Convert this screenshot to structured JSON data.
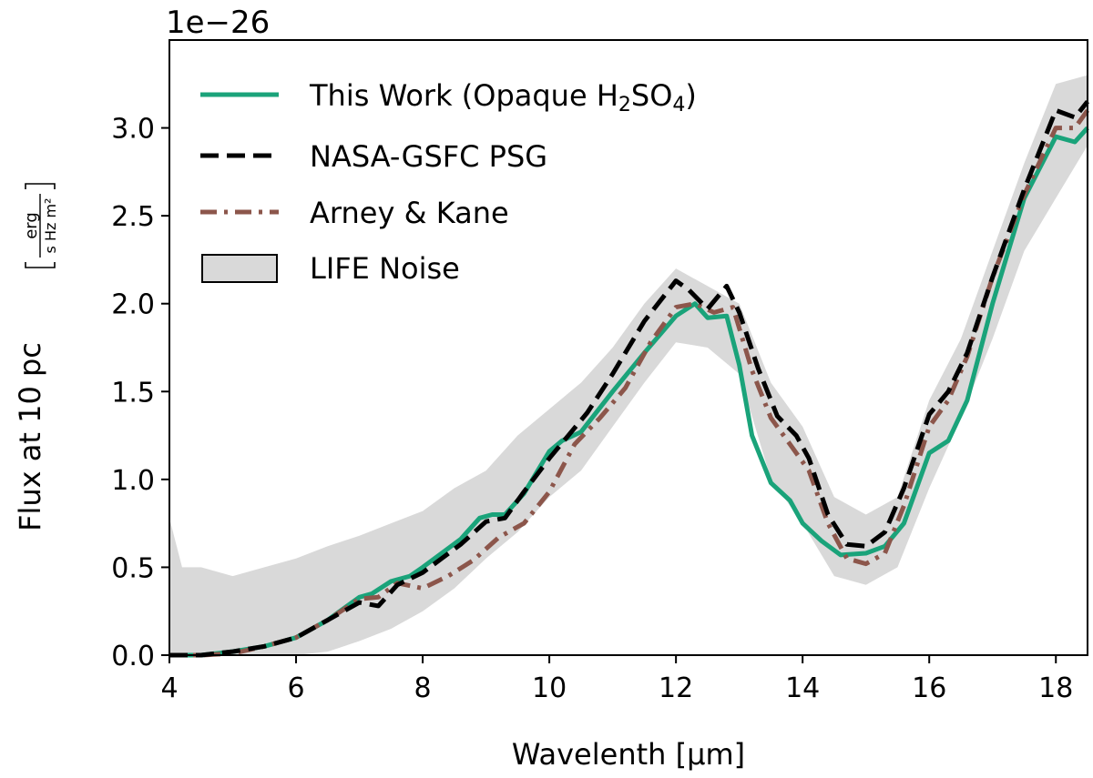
{
  "chart_data": {
    "type": "line",
    "xlabel": "Wavelenth [μm]",
    "ylabel": "Flux at 10 pc",
    "ylabel_unit_num": "erg",
    "ylabel_unit_den": "s Hz m²",
    "offset_text": "1e−26",
    "xlim": [
      4,
      18.5
    ],
    "ylim": [
      0,
      3.5
    ],
    "xticks": [
      4,
      6,
      8,
      10,
      12,
      14,
      16,
      18
    ],
    "yticks": [
      0.0,
      0.5,
      1.0,
      1.5,
      2.0,
      2.5,
      3.0
    ],
    "xtick_labels": [
      "4",
      "6",
      "8",
      "10",
      "12",
      "14",
      "16",
      "18"
    ],
    "ytick_labels": [
      "0.0",
      "0.5",
      "1.0",
      "1.5",
      "2.0",
      "2.5",
      "3.0"
    ],
    "grid": false,
    "legend_position": "top-left",
    "legend": {
      "this_work": "This Work (Opaque H",
      "this_work_sub1": "2",
      "this_work_mid": "SO",
      "this_work_sub2": "4",
      "this_work_end": ")",
      "psg": "NASA-GSFC PSG",
      "arney": "Arney & Kane",
      "noise": "LIFE Noise"
    },
    "colors": {
      "this_work": "#1aa37a",
      "psg": "#000000",
      "arney": "#8c564b",
      "noise_fill": "#d9d9d9"
    },
    "series": [
      {
        "name": "This Work (Opaque H2SO4)",
        "style": "solid",
        "x": [
          4.0,
          4.5,
          5.0,
          5.5,
          6.0,
          6.5,
          7.0,
          7.2,
          7.5,
          7.8,
          8.0,
          8.3,
          8.6,
          8.9,
          9.1,
          9.3,
          9.6,
          10.0,
          10.2,
          10.5,
          11.0,
          11.5,
          12.0,
          12.3,
          12.5,
          12.8,
          13.0,
          13.2,
          13.5,
          13.8,
          14.0,
          14.3,
          14.6,
          15.0,
          15.3,
          15.6,
          15.8,
          16.0,
          16.3,
          16.6,
          17.0,
          17.5,
          18.0,
          18.3,
          18.5
        ],
        "y": [
          0.0,
          0.0,
          0.02,
          0.05,
          0.1,
          0.2,
          0.33,
          0.35,
          0.42,
          0.45,
          0.5,
          0.58,
          0.66,
          0.78,
          0.8,
          0.8,
          0.92,
          1.16,
          1.22,
          1.27,
          1.5,
          1.72,
          1.93,
          2.0,
          1.92,
          1.93,
          1.65,
          1.25,
          0.98,
          0.88,
          0.75,
          0.65,
          0.57,
          0.58,
          0.62,
          0.75,
          0.95,
          1.15,
          1.22,
          1.45,
          2.0,
          2.6,
          2.95,
          2.92,
          3.0
        ]
      },
      {
        "name": "NASA-GSFC PSG",
        "style": "dashed",
        "x": [
          4.0,
          4.5,
          5.0,
          5.5,
          6.0,
          6.5,
          7.0,
          7.3,
          7.6,
          8.0,
          8.3,
          8.6,
          9.0,
          9.3,
          9.6,
          10.0,
          10.3,
          10.6,
          11.0,
          11.5,
          12.0,
          12.2,
          12.5,
          12.8,
          13.0,
          13.3,
          13.6,
          13.9,
          14.1,
          14.4,
          14.7,
          15.0,
          15.3,
          15.6,
          16.0,
          16.3,
          16.6,
          17.0,
          17.5,
          18.0,
          18.3,
          18.5
        ],
        "y": [
          0.0,
          0.0,
          0.02,
          0.05,
          0.1,
          0.2,
          0.3,
          0.28,
          0.4,
          0.47,
          0.55,
          0.63,
          0.76,
          0.78,
          0.93,
          1.12,
          1.25,
          1.38,
          1.6,
          1.9,
          2.13,
          2.08,
          1.97,
          2.1,
          1.95,
          1.63,
          1.36,
          1.25,
          1.12,
          0.8,
          0.63,
          0.62,
          0.7,
          0.95,
          1.37,
          1.5,
          1.72,
          2.15,
          2.65,
          3.1,
          3.06,
          3.15
        ]
      },
      {
        "name": "Arney & Kane",
        "style": "dashdot",
        "x": [
          4.0,
          4.5,
          5.0,
          5.5,
          6.0,
          6.5,
          7.0,
          7.3,
          7.6,
          8.0,
          8.4,
          8.8,
          9.2,
          9.6,
          10.0,
          10.4,
          10.8,
          11.2,
          11.6,
          12.0,
          12.3,
          12.6,
          12.9,
          13.2,
          13.5,
          13.8,
          14.1,
          14.4,
          14.7,
          15.0,
          15.3,
          15.6,
          16.0,
          16.3,
          16.6,
          17.0,
          17.5,
          18.0,
          18.3,
          18.5
        ],
        "y": [
          0.0,
          0.0,
          0.01,
          0.05,
          0.1,
          0.2,
          0.32,
          0.33,
          0.41,
          0.38,
          0.45,
          0.54,
          0.67,
          0.75,
          0.93,
          1.2,
          1.35,
          1.52,
          1.78,
          1.98,
          2.0,
          1.95,
          1.98,
          1.62,
          1.35,
          1.2,
          1.05,
          0.75,
          0.55,
          0.52,
          0.58,
          0.85,
          1.3,
          1.45,
          1.7,
          2.15,
          2.62,
          3.0,
          3.0,
          3.1
        ]
      }
    ],
    "noise_band": {
      "name": "LIFE Noise",
      "x": [
        4.0,
        4.2,
        4.5,
        5.0,
        5.5,
        6.0,
        6.5,
        7.0,
        7.5,
        8.0,
        8.5,
        9.0,
        9.5,
        10.0,
        10.5,
        11.0,
        11.5,
        12.0,
        12.5,
        13.0,
        13.5,
        14.0,
        14.5,
        15.0,
        15.5,
        16.0,
        16.5,
        17.0,
        17.5,
        18.0,
        18.5
      ],
      "upper": [
        0.78,
        0.5,
        0.5,
        0.45,
        0.5,
        0.55,
        0.62,
        0.68,
        0.75,
        0.82,
        0.95,
        1.05,
        1.25,
        1.4,
        1.55,
        1.75,
        2.0,
        2.2,
        2.1,
        2.0,
        1.55,
        1.3,
        0.9,
        0.8,
        0.9,
        1.45,
        1.8,
        2.3,
        2.8,
        3.25,
        3.3
      ],
      "lower": [
        0.0,
        0.0,
        0.0,
        0.0,
        0.0,
        0.0,
        0.02,
        0.08,
        0.15,
        0.25,
        0.38,
        0.55,
        0.7,
        0.9,
        1.05,
        1.3,
        1.55,
        1.78,
        1.75,
        1.6,
        1.0,
        0.75,
        0.45,
        0.4,
        0.5,
        0.95,
        1.35,
        1.8,
        2.3,
        2.6,
        2.9
      ]
    }
  }
}
